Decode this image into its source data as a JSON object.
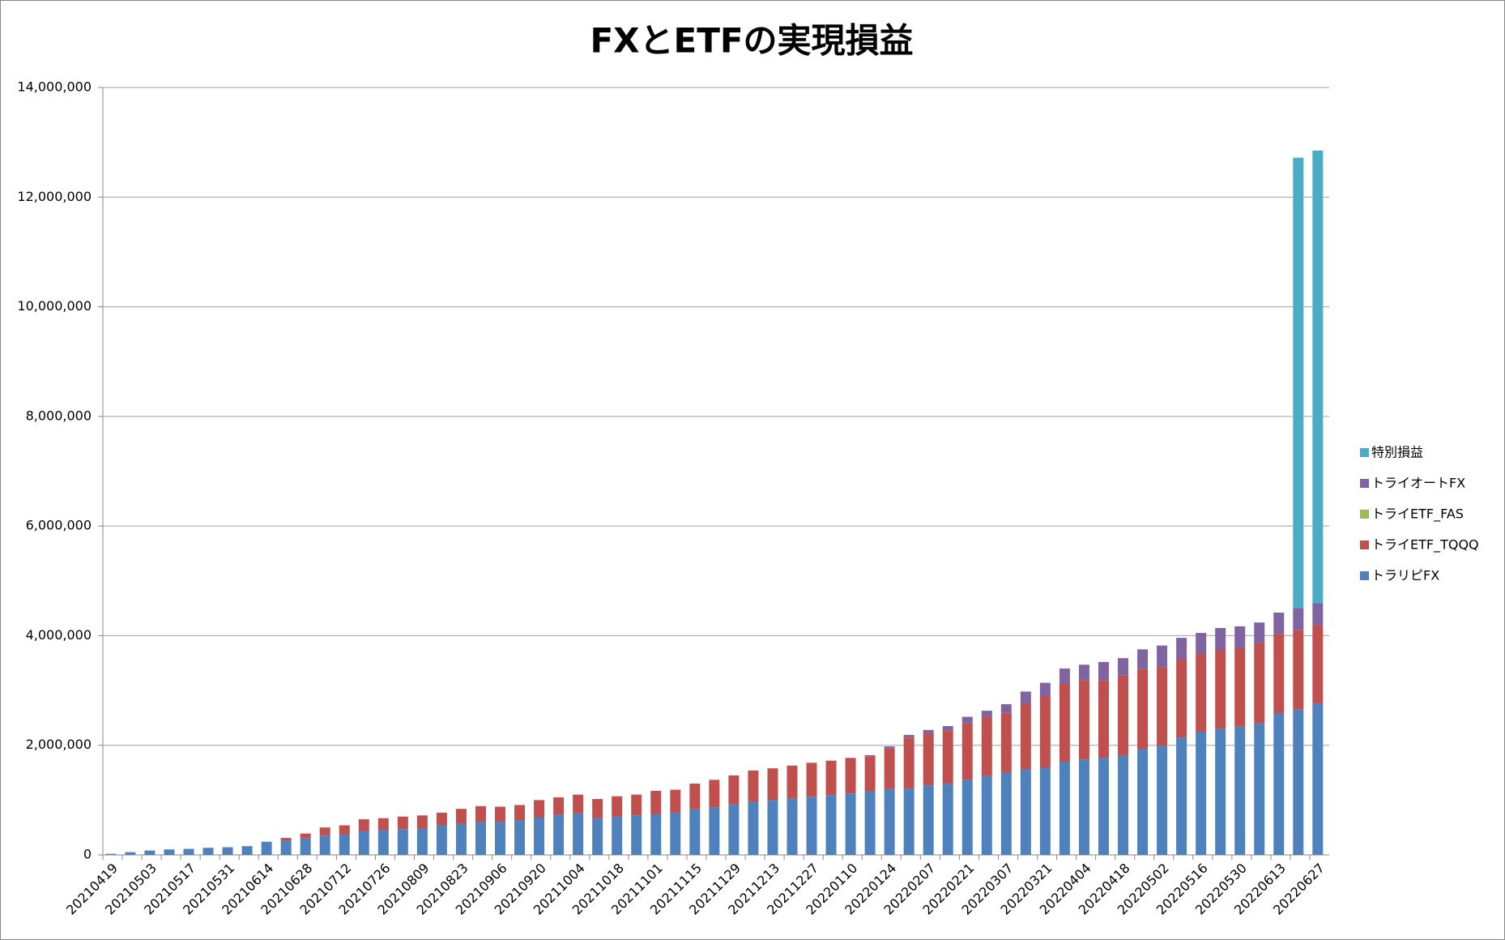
{
  "chart_data": {
    "type": "stacked-bar",
    "title": "FXとETFの実現損益",
    "categories": [
      "20210419",
      null,
      "20210503",
      null,
      "20210517",
      null,
      "20210531",
      null,
      "20210614",
      null,
      "20210628",
      null,
      "20210712",
      null,
      "20210726",
      null,
      "20210809",
      null,
      "20210823",
      null,
      "20210906",
      null,
      "20210920",
      null,
      "20211004",
      null,
      "20211018",
      null,
      "20211101",
      null,
      "20211115",
      null,
      "20211129",
      null,
      "20211213",
      null,
      "20211227",
      null,
      "20220110",
      null,
      "20220124",
      null,
      "20220207",
      null,
      "20220221",
      null,
      "20220307",
      null,
      "20220321",
      null,
      "20220404",
      null,
      "20220418",
      null,
      "20220502",
      null,
      "20220516",
      null,
      "20220530",
      null,
      "20220613",
      null,
      "20220627"
    ],
    "series": [
      {
        "name": "トラリピFX",
        "color": "#4f81bd",
        "values": [
          20000,
          50000,
          80000,
          100000,
          110000,
          130000,
          140000,
          160000,
          240000,
          260000,
          300000,
          350000,
          370000,
          430000,
          450000,
          470000,
          480000,
          540000,
          570000,
          600000,
          600000,
          630000,
          680000,
          730000,
          760000,
          670000,
          700000,
          720000,
          740000,
          770000,
          830000,
          870000,
          920000,
          970000,
          1000000,
          1030000,
          1060000,
          1090000,
          1120000,
          1160000,
          1200000,
          1210000,
          1270000,
          1300000,
          1370000,
          1440000,
          1500000,
          1560000,
          1590000,
          1700000,
          1740000,
          1770000,
          1810000,
          1930000,
          1990000,
          2140000,
          2240000,
          2300000,
          2340000,
          2400000,
          2580000,
          2650000,
          2760000
        ]
      },
      {
        "name": "トライETF_TQQQ",
        "color": "#c0504d",
        "values": [
          0,
          0,
          0,
          0,
          0,
          0,
          0,
          0,
          0,
          50000,
          90000,
          150000,
          170000,
          220000,
          220000,
          230000,
          240000,
          230000,
          270000,
          290000,
          280000,
          280000,
          320000,
          320000,
          340000,
          350000,
          370000,
          380000,
          430000,
          420000,
          470000,
          500000,
          530000,
          570000,
          580000,
          600000,
          620000,
          630000,
          650000,
          640000,
          740000,
          930000,
          940000,
          960000,
          1030000,
          1080000,
          1090000,
          1190000,
          1300000,
          1420000,
          1440000,
          1420000,
          1460000,
          1460000,
          1430000,
          1430000,
          1420000,
          1440000,
          1430000,
          1460000,
          1450000,
          1450000,
          1430000
        ]
      },
      {
        "name": "トライETF_FAS",
        "color": "#9bbb59",
        "values": [
          0,
          0,
          0,
          0,
          0,
          0,
          0,
          0,
          0,
          0,
          0,
          0,
          0,
          0,
          0,
          0,
          0,
          0,
          0,
          0,
          0,
          0,
          0,
          0,
          0,
          0,
          0,
          0,
          0,
          0,
          0,
          0,
          0,
          0,
          0,
          0,
          0,
          0,
          0,
          0,
          0,
          0,
          0,
          0,
          0,
          0,
          0,
          0,
          0,
          0,
          0,
          0,
          0,
          0,
          0,
          0,
          0,
          0,
          0,
          0,
          0,
          0,
          0
        ]
      },
      {
        "name": "トライオートFX",
        "color": "#8064a2",
        "values": [
          0,
          0,
          0,
          0,
          0,
          0,
          0,
          0,
          0,
          0,
          0,
          0,
          0,
          0,
          0,
          0,
          0,
          0,
          0,
          0,
          0,
          0,
          0,
          0,
          0,
          0,
          0,
          0,
          0,
          0,
          0,
          0,
          0,
          0,
          0,
          0,
          0,
          0,
          0,
          20000,
          40000,
          50000,
          70000,
          90000,
          120000,
          110000,
          160000,
          230000,
          250000,
          280000,
          290000,
          330000,
          320000,
          360000,
          400000,
          390000,
          390000,
          400000,
          400000,
          380000,
          390000,
          400000,
          400000
        ]
      },
      {
        "name": "特別損益",
        "color": "#4bacc6",
        "values": [
          0,
          0,
          0,
          0,
          0,
          0,
          0,
          0,
          0,
          0,
          0,
          0,
          0,
          0,
          0,
          0,
          0,
          0,
          0,
          0,
          0,
          0,
          0,
          0,
          0,
          0,
          0,
          0,
          0,
          0,
          0,
          0,
          0,
          0,
          0,
          0,
          0,
          0,
          0,
          0,
          0,
          0,
          0,
          0,
          0,
          0,
          0,
          0,
          0,
          0,
          0,
          0,
          0,
          0,
          0,
          0,
          0,
          0,
          0,
          0,
          0,
          8220000,
          8260000
        ]
      }
    ],
    "ylim": [
      0,
      14000000
    ],
    "yticks": [
      0,
      {
        "value": 2000000,
        "label": "2,000,000"
      },
      {
        "value": 4000000,
        "label": "4,000,000"
      },
      {
        "value": 6000000,
        "label": "6,000,000"
      },
      {
        "value": 8000000,
        "label": "8,000,000"
      },
      {
        "value": 10000000,
        "label": "10,000,000"
      },
      {
        "value": 12000000,
        "label": "12,000,000"
      },
      {
        "value": 14000000,
        "label": "14,000,000"
      }
    ],
    "grid": true,
    "legend": "right"
  }
}
